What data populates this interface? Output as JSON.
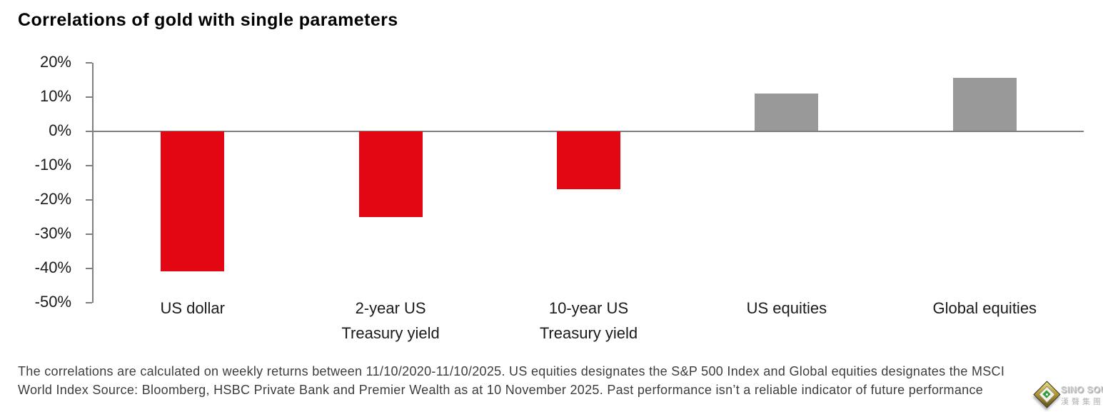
{
  "page": {
    "title": "Correlations of gold with single parameters",
    "footnote_line1": "The correlations are calculated on weekly returns between 11/10/2020-11/10/2025. US equities designates the S&P 500 Index and Global equities designates the MSCI",
    "footnote_line2": "World Index Source: Bloomberg, HSBC Private Bank and Premier Wealth as at 10 November 2025. Past performance isn’t a reliable indicator of future performance"
  },
  "watermark": {
    "logo": "diamond-gem-icon",
    "brand": "SINO SOUND",
    "brand_cjk": "漢聲集團"
  },
  "chart_data": {
    "type": "bar",
    "title": "Correlations of gold with single parameters",
    "categories": [
      "US dollar",
      "2-year US Treasury yield",
      "10-year US Treasury yield",
      "US equities",
      "Global equities"
    ],
    "category_label_lines": [
      [
        "US dollar"
      ],
      [
        "2-year US",
        "Treasury yield"
      ],
      [
        "10-year US",
        "Treasury yield"
      ],
      [
        "US equities"
      ],
      [
        "Global equities"
      ]
    ],
    "values": [
      -41,
      -25,
      -17,
      11,
      15.5
    ],
    "unit": "%",
    "negative_color": "#e30613",
    "positive_color": "#999999",
    "axis_color": "#7f7f7f",
    "text_color": "#1a1a1a",
    "xlabel": "",
    "ylabel": "",
    "ylim": [
      -50,
      20
    ],
    "yticks": [
      20,
      10,
      0,
      -10,
      -20,
      -30,
      -40,
      -50
    ],
    "ytick_format": "percent",
    "grid": false,
    "legend": false
  }
}
